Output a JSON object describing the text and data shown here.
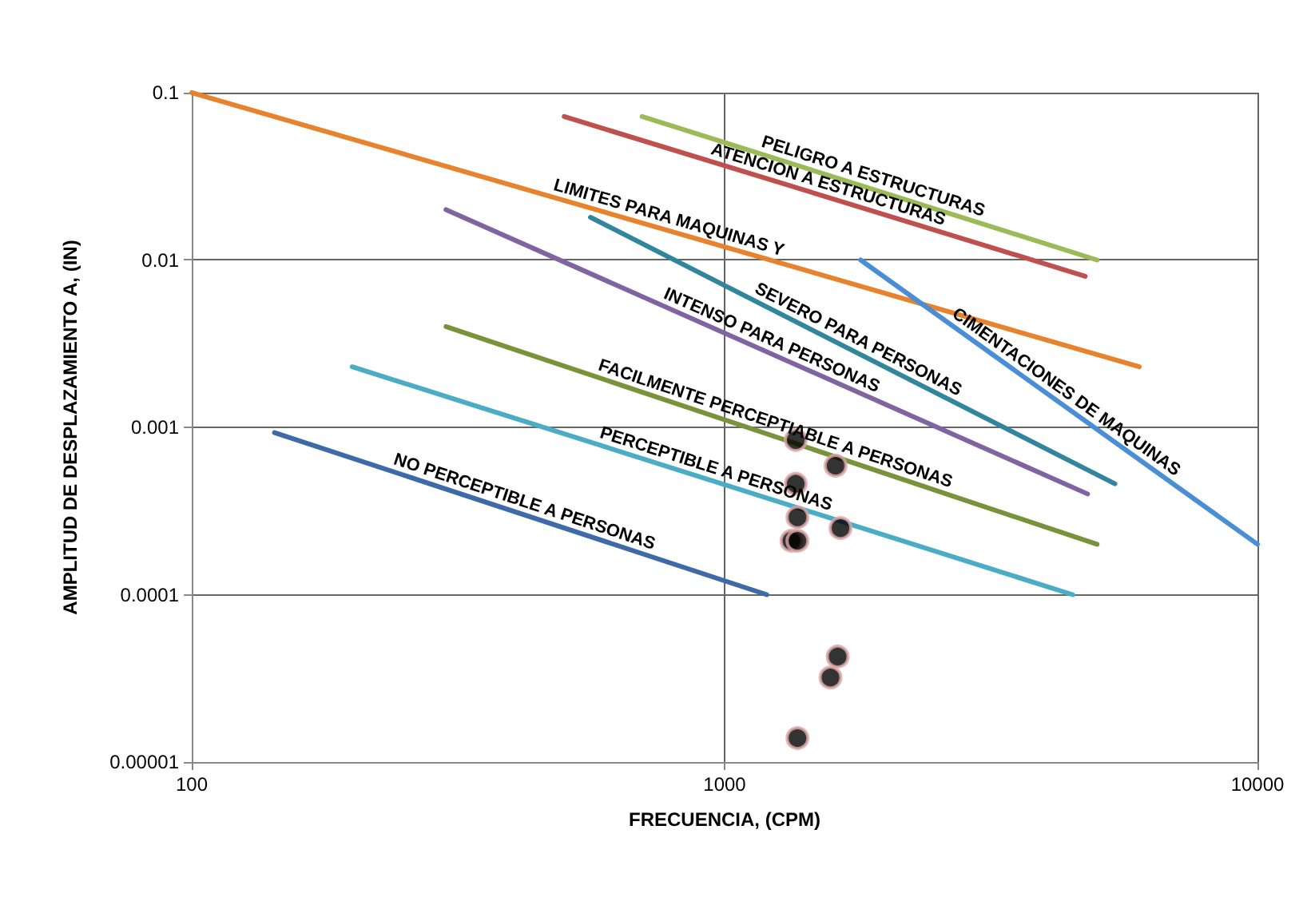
{
  "chart_data": {
    "type": "line",
    "xlabel": "FRECUENCIA, (CPM)",
    "ylabel": "AMPLITUD DE DESPLAZAMIENTO A, (IN)",
    "log": "xy",
    "grid": true,
    "legend": false,
    "marker": "none",
    "line_style": "solid",
    "xlim": [
      100,
      10000
    ],
    "xticks": [
      100,
      1000,
      10000
    ],
    "ylim": [
      1e-05,
      0.1
    ],
    "yticks": [
      {
        "value": 1e-05,
        "label": "0.00001"
      },
      {
        "value": 0.0001,
        "label": "0.0001"
      },
      {
        "value": 0.001,
        "label": "0.001"
      },
      {
        "value": 0.01,
        "label": "0.01"
      },
      {
        "value": 0.1,
        "label": "0.1"
      }
    ],
    "series": [
      {
        "name": "PELIGRO A ESTRUCTURAS",
        "color": "#9bbb59",
        "x": [
          700,
          5000
        ],
        "values": [
          0.072,
          0.01
        ]
      },
      {
        "name": "ATENCION A ESTRUCTURAS",
        "color": "#c0504d",
        "x": [
          500,
          4750
        ],
        "values": [
          0.072,
          0.008
        ]
      },
      {
        "name": "LIMITES PARA MAQUINAS Y",
        "color": "#e8822d",
        "x": [
          100,
          6000
        ],
        "values": [
          0.1,
          0.0023
        ]
      },
      {
        "name": "CIMENTACIONES DE MAQUINAS",
        "color": "#4a8fd6",
        "x": [
          1800,
          10000
        ],
        "values": [
          0.01,
          0.0002
        ]
      },
      {
        "name": "SEVERO PARA PERSONAS",
        "color": "#31859c",
        "x": [
          560,
          5400
        ],
        "values": [
          0.018,
          0.00046
        ]
      },
      {
        "name": "INTENSO PARA PERSONAS",
        "color": "#8064a2",
        "x": [
          300,
          4800
        ],
        "values": [
          0.02,
          0.0004
        ]
      },
      {
        "name": "FACILMENTE PERCEPTIABLE A PERSONAS",
        "color": "#77933c",
        "x": [
          300,
          5000
        ],
        "values": [
          0.004,
          0.0002
        ]
      },
      {
        "name": "PERCEPTIBLE A PERSONAS",
        "color": "#4bacc6",
        "x": [
          200,
          4500
        ],
        "values": [
          0.0023,
          0.0001
        ]
      },
      {
        "name": "NO PERCEPTIBLE A PERSONAS",
        "color": "#3f6aa8",
        "x": [
          143,
          1200
        ],
        "values": [
          0.00093,
          0.0001
        ]
      },
      {
        "type": "scatter",
        "marker": "circle",
        "color": "#000000",
        "x": [
          1360,
          1615,
          1360,
          1370,
          1650,
          1335,
          1370,
          1630,
          1580,
          1370
        ],
        "values": [
          0.00084,
          0.00059,
          0.00046,
          0.00029,
          0.00025,
          0.00021,
          0.00021,
          4.27e-05,
          3.2e-05,
          1.39e-05
        ]
      }
    ]
  }
}
